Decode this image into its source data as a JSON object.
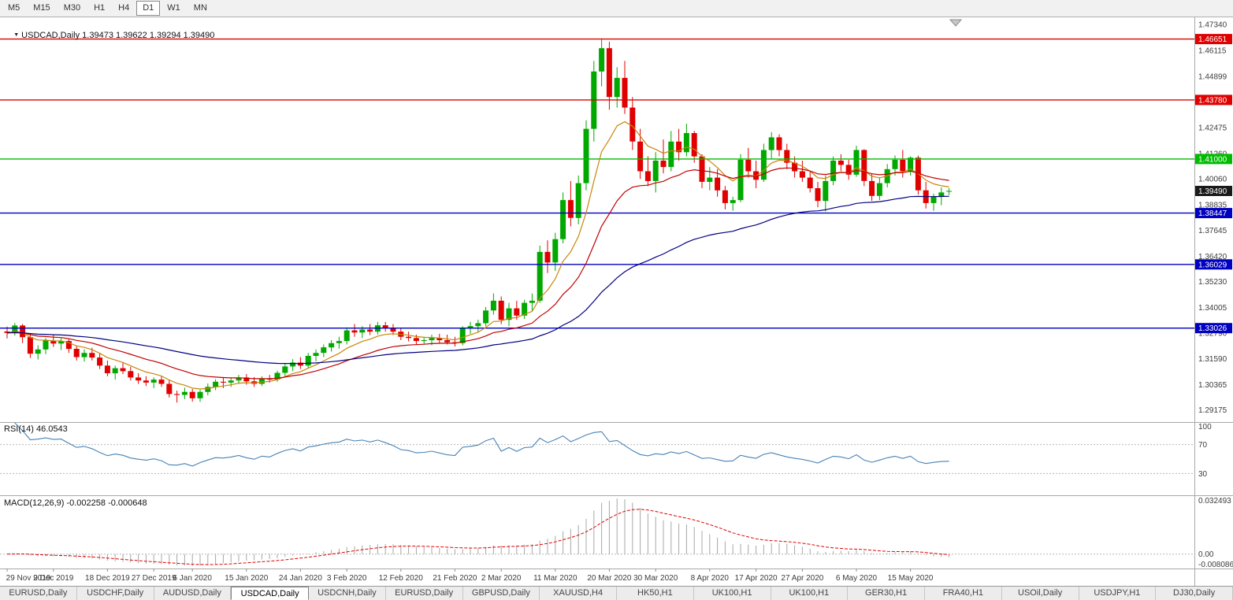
{
  "toolbar": {
    "timeframes": [
      {
        "label": "M5",
        "selected": false
      },
      {
        "label": "M15",
        "selected": false
      },
      {
        "label": "M30",
        "selected": false
      },
      {
        "label": "H1",
        "selected": false
      },
      {
        "label": "H4",
        "selected": false
      },
      {
        "label": "D1",
        "selected": true
      },
      {
        "label": "W1",
        "selected": false
      },
      {
        "label": "MN",
        "selected": false
      }
    ]
  },
  "icons": {
    "chart_dropdown": "▼"
  },
  "chart": {
    "symbol_title": "USDCAD,Daily 1.39473 1.39622 1.39294 1.39490"
  },
  "chart_data": {
    "type": "candlestick",
    "title": "USDCAD,Daily",
    "last_quote": {
      "open": "1.39473",
      "high": "1.39622",
      "low": "1.39294",
      "close": "1.39490"
    },
    "colors": {
      "up": "#00A800",
      "down": "#E00000",
      "background": "#FFFFFF",
      "axis_text": "#3C3C3C"
    },
    "y_axis": {
      "min": 1.286,
      "max": 1.476,
      "ticks": [
        {
          "value": 1.4734,
          "text": "1.47340"
        },
        {
          "value": 1.46115,
          "text": "1.46115"
        },
        {
          "value": 1.44899,
          "text": "1.44899"
        },
        {
          "value": 1.42475,
          "text": "1.42475"
        },
        {
          "value": 1.4126,
          "text": "1.41260"
        },
        {
          "value": 1.4006,
          "text": "1.40060"
        },
        {
          "value": 1.38835,
          "text": "1.38835"
        },
        {
          "value": 1.37645,
          "text": "1.37645"
        },
        {
          "value": 1.3642,
          "text": "1.36420"
        },
        {
          "value": 1.3523,
          "text": "1.35230"
        },
        {
          "value": 1.34005,
          "text": "1.34005"
        },
        {
          "value": 1.3279,
          "text": "1.32790"
        },
        {
          "value": 1.3159,
          "text": "1.31590"
        },
        {
          "value": 1.30365,
          "text": "1.30365"
        },
        {
          "value": 1.29175,
          "text": "1.29175"
        }
      ]
    },
    "hlines": [
      {
        "value": 1.46651,
        "text": "1.46651",
        "color": "#E00000"
      },
      {
        "value": 1.4378,
        "text": "1.43780",
        "color": "#E00000"
      },
      {
        "value": 1.41,
        "text": "1.41000",
        "color": "#00BB00"
      },
      {
        "value": 1.38447,
        "text": "1.38447",
        "color": "#0000C0"
      },
      {
        "value": 1.36029,
        "text": "1.36029",
        "color": "#0000C0"
      },
      {
        "value": 1.33026,
        "text": "1.33026",
        "color": "#0000C0"
      }
    ],
    "current_price_label": {
      "value": 1.3949,
      "text": "1.39490",
      "color": "#1A1A1A"
    },
    "moving_averages": [
      {
        "name": "fast",
        "period": 8,
        "method": "ema",
        "color": "#C8860A"
      },
      {
        "name": "medium",
        "period": 20,
        "method": "ema",
        "color": "#C00000"
      },
      {
        "name": "slow",
        "period": 55,
        "method": "ema",
        "color": "#000080"
      }
    ],
    "x_axis_labels": [
      {
        "date": "2019-11-29",
        "text": "29 Nov 2019"
      },
      {
        "date": "2019-12-09",
        "text": "9 Dec 2019"
      },
      {
        "date": "2019-12-18",
        "text": "18 Dec 2019"
      },
      {
        "date": "2019-12-27",
        "text": "27 Dec 2019"
      },
      {
        "date": "2020-01-06",
        "text": "6 Jan 2020"
      },
      {
        "date": "2020-01-15",
        "text": "15 Jan 2020"
      },
      {
        "date": "2020-01-24",
        "text": "24 Jan 2020"
      },
      {
        "date": "2020-02-03",
        "text": "3 Feb 2020"
      },
      {
        "date": "2020-02-12",
        "text": "12 Feb 2020"
      },
      {
        "date": "2020-02-21",
        "text": "21 Feb 2020"
      },
      {
        "date": "2020-03-02",
        "text": "2 Mar 2020"
      },
      {
        "date": "2020-03-11",
        "text": "11 Mar 2020"
      },
      {
        "date": "2020-03-20",
        "text": "20 Mar 2020"
      },
      {
        "date": "2020-03-30",
        "text": "30 Mar 2020"
      },
      {
        "date": "2020-04-08",
        "text": "8 Apr 2020"
      },
      {
        "date": "2020-04-17",
        "text": "17 Apr 2020"
      },
      {
        "date": "2020-04-27",
        "text": "27 Apr 2020"
      },
      {
        "date": "2020-05-06",
        "text": "6 May 2020"
      },
      {
        "date": "2020-05-15",
        "text": "15 May 2020"
      }
    ],
    "candles": [
      [
        "2019-11-29",
        1.3287,
        1.331,
        1.3254,
        1.328
      ],
      [
        "2019-12-02",
        1.328,
        1.3327,
        1.3268,
        1.3315
      ],
      [
        "2019-12-03",
        1.3315,
        1.3322,
        1.3232,
        1.326
      ],
      [
        "2019-12-04",
        1.326,
        1.3276,
        1.3162,
        1.3182
      ],
      [
        "2019-12-05",
        1.3182,
        1.3222,
        1.3155,
        1.3202
      ],
      [
        "2019-12-06",
        1.3202,
        1.3256,
        1.318,
        1.3244
      ],
      [
        "2019-12-09",
        1.3244,
        1.327,
        1.3214,
        1.323
      ],
      [
        "2019-12-10",
        1.323,
        1.3256,
        1.32,
        1.3242
      ],
      [
        "2019-12-11",
        1.3242,
        1.325,
        1.3186,
        1.3205
      ],
      [
        "2019-12-12",
        1.3205,
        1.322,
        1.315,
        1.3166
      ],
      [
        "2019-12-13",
        1.3166,
        1.3202,
        1.3145,
        1.3186
      ],
      [
        "2019-12-16",
        1.3186,
        1.321,
        1.315,
        1.3164
      ],
      [
        "2019-12-17",
        1.3164,
        1.3186,
        1.311,
        1.3126
      ],
      [
        "2019-12-18",
        1.3126,
        1.315,
        1.3076,
        1.309
      ],
      [
        "2019-12-19",
        1.309,
        1.3126,
        1.306,
        1.3114
      ],
      [
        "2019-12-20",
        1.3114,
        1.314,
        1.3086,
        1.31
      ],
      [
        "2019-12-23",
        1.31,
        1.312,
        1.3056,
        1.307
      ],
      [
        "2019-12-24",
        1.307,
        1.309,
        1.304,
        1.3056
      ],
      [
        "2019-12-26",
        1.3056,
        1.3076,
        1.303,
        1.3046
      ],
      [
        "2019-12-27",
        1.3046,
        1.307,
        1.302,
        1.306
      ],
      [
        "2019-12-30",
        1.306,
        1.3076,
        1.3026,
        1.304
      ],
      [
        "2019-12-31",
        1.304,
        1.306,
        1.2976,
        1.2992
      ],
      [
        "2020-01-02",
        1.2992,
        1.3008,
        1.2952,
        1.2988
      ],
      [
        "2020-01-03",
        1.2988,
        1.3022,
        1.2968,
        1.3002
      ],
      [
        "2020-01-06",
        1.3002,
        1.3016,
        1.2956,
        1.2972
      ],
      [
        "2020-01-07",
        1.2972,
        1.3012,
        1.2955,
        1.3002
      ],
      [
        "2020-01-08",
        1.3002,
        1.3042,
        1.2986,
        1.3026
      ],
      [
        "2020-01-09",
        1.3026,
        1.3062,
        1.301,
        1.305
      ],
      [
        "2020-01-10",
        1.305,
        1.3072,
        1.302,
        1.3046
      ],
      [
        "2020-01-13",
        1.3046,
        1.3066,
        1.3026,
        1.3056
      ],
      [
        "2020-01-14",
        1.3056,
        1.3082,
        1.304,
        1.307
      ],
      [
        "2020-01-15",
        1.307,
        1.3086,
        1.3036,
        1.3052
      ],
      [
        "2020-01-16",
        1.3052,
        1.3072,
        1.3026,
        1.304
      ],
      [
        "2020-01-17",
        1.304,
        1.3076,
        1.303,
        1.3066
      ],
      [
        "2020-01-20",
        1.3066,
        1.3082,
        1.3046,
        1.306
      ],
      [
        "2020-01-21",
        1.306,
        1.3102,
        1.305,
        1.3092
      ],
      [
        "2020-01-22",
        1.3092,
        1.3136,
        1.3076,
        1.3122
      ],
      [
        "2020-01-23",
        1.3122,
        1.3156,
        1.31,
        1.314
      ],
      [
        "2020-01-24",
        1.314,
        1.3166,
        1.311,
        1.3126
      ],
      [
        "2020-01-27",
        1.3126,
        1.3186,
        1.3116,
        1.3172
      ],
      [
        "2020-01-28",
        1.3172,
        1.3202,
        1.3146,
        1.3186
      ],
      [
        "2020-01-29",
        1.3186,
        1.3226,
        1.3166,
        1.3212
      ],
      [
        "2020-01-30",
        1.3212,
        1.3246,
        1.3192,
        1.3232
      ],
      [
        "2020-01-31",
        1.3232,
        1.3262,
        1.3206,
        1.3242
      ],
      [
        "2020-02-03",
        1.3242,
        1.3306,
        1.3226,
        1.3292
      ],
      [
        "2020-02-04",
        1.3292,
        1.3322,
        1.3262,
        1.3282
      ],
      [
        "2020-02-05",
        1.3282,
        1.3312,
        1.3256,
        1.3296
      ],
      [
        "2020-02-06",
        1.3296,
        1.3322,
        1.327,
        1.3286
      ],
      [
        "2020-02-07",
        1.3286,
        1.3332,
        1.3272,
        1.3316
      ],
      [
        "2020-02-10",
        1.3316,
        1.3332,
        1.3286,
        1.3302
      ],
      [
        "2020-02-11",
        1.3302,
        1.3322,
        1.327,
        1.3286
      ],
      [
        "2020-02-12",
        1.3286,
        1.3302,
        1.3246,
        1.3262
      ],
      [
        "2020-02-13",
        1.3262,
        1.3286,
        1.324,
        1.3256
      ],
      [
        "2020-02-14",
        1.3256,
        1.3272,
        1.3226,
        1.3242
      ],
      [
        "2020-02-17",
        1.3242,
        1.3262,
        1.3226,
        1.3246
      ],
      [
        "2020-02-18",
        1.3246,
        1.3272,
        1.3222,
        1.3256
      ],
      [
        "2020-02-19",
        1.3256,
        1.3276,
        1.3232,
        1.3246
      ],
      [
        "2020-02-20",
        1.3246,
        1.3272,
        1.3226,
        1.3236
      ],
      [
        "2020-02-21",
        1.3236,
        1.3262,
        1.3216,
        1.3232
      ],
      [
        "2020-02-24",
        1.3232,
        1.3312,
        1.3222,
        1.3302
      ],
      [
        "2020-02-25",
        1.3302,
        1.3332,
        1.3276,
        1.3312
      ],
      [
        "2020-02-26",
        1.3312,
        1.3342,
        1.3286,
        1.3326
      ],
      [
        "2020-02-27",
        1.3326,
        1.3402,
        1.3312,
        1.3386
      ],
      [
        "2020-02-28",
        1.3386,
        1.3466,
        1.3366,
        1.3432
      ],
      [
        "2020-03-02",
        1.3432,
        1.3452,
        1.3322,
        1.3342
      ],
      [
        "2020-03-03",
        1.3342,
        1.3422,
        1.3312,
        1.3396
      ],
      [
        "2020-03-04",
        1.3396,
        1.3432,
        1.3342,
        1.3362
      ],
      [
        "2020-03-05",
        1.3362,
        1.3436,
        1.3346,
        1.3422
      ],
      [
        "2020-03-06",
        1.3422,
        1.3466,
        1.3382,
        1.3432
      ],
      [
        "2020-03-09",
        1.3432,
        1.3692,
        1.3422,
        1.3662
      ],
      [
        "2020-03-10",
        1.3662,
        1.3716,
        1.3562,
        1.3612
      ],
      [
        "2020-03-11",
        1.3612,
        1.3752,
        1.3572,
        1.3722
      ],
      [
        "2020-03-12",
        1.3722,
        1.3942,
        1.3702,
        1.3906
      ],
      [
        "2020-03-13",
        1.3906,
        1.3996,
        1.3782,
        1.3822
      ],
      [
        "2020-03-16",
        1.3822,
        1.4022,
        1.3792,
        1.3986
      ],
      [
        "2020-03-17",
        1.3986,
        1.4282,
        1.3952,
        1.4242
      ],
      [
        "2020-03-18",
        1.4242,
        1.4562,
        1.4182,
        1.4512
      ],
      [
        "2020-03-19",
        1.4512,
        1.4668,
        1.4442,
        1.4622
      ],
      [
        "2020-03-20",
        1.4622,
        1.4652,
        1.4332,
        1.4392
      ],
      [
        "2020-03-23",
        1.4392,
        1.4532,
        1.4342,
        1.4482
      ],
      [
        "2020-03-24",
        1.4482,
        1.4562,
        1.4312,
        1.4342
      ],
      [
        "2020-03-25",
        1.4342,
        1.4392,
        1.4142,
        1.4182
      ],
      [
        "2020-03-26",
        1.4182,
        1.4242,
        1.4006,
        1.4042
      ],
      [
        "2020-03-27",
        1.4042,
        1.4112,
        1.3972,
        1.3996
      ],
      [
        "2020-03-30",
        1.3996,
        1.4132,
        1.3942,
        1.4092
      ],
      [
        "2020-03-31",
        1.4092,
        1.4192,
        1.4032,
        1.4062
      ],
      [
        "2020-04-01",
        1.4062,
        1.4232,
        1.4042,
        1.4182
      ],
      [
        "2020-04-02",
        1.4182,
        1.4242,
        1.4092,
        1.4132
      ],
      [
        "2020-04-03",
        1.4132,
        1.4266,
        1.4112,
        1.4222
      ],
      [
        "2020-04-06",
        1.4222,
        1.4232,
        1.4082,
        1.4112
      ],
      [
        "2020-04-07",
        1.4112,
        1.4122,
        1.3962,
        1.3992
      ],
      [
        "2020-04-08",
        1.3992,
        1.4062,
        1.3952,
        1.4012
      ],
      [
        "2020-04-09",
        1.4012,
        1.4052,
        1.3922,
        1.3952
      ],
      [
        "2020-04-13",
        1.3952,
        1.3972,
        1.3862,
        1.3892
      ],
      [
        "2020-04-14",
        1.3892,
        1.3922,
        1.3856,
        1.3906
      ],
      [
        "2020-04-15",
        1.3906,
        1.4122,
        1.3896,
        1.4096
      ],
      [
        "2020-04-16",
        1.4096,
        1.4152,
        1.4012,
        1.4042
      ],
      [
        "2020-04-17",
        1.4042,
        1.4092,
        1.3962,
        1.4002
      ],
      [
        "2020-04-20",
        1.4002,
        1.4172,
        1.3992,
        1.4142
      ],
      [
        "2020-04-21",
        1.4142,
        1.4226,
        1.4102,
        1.4202
      ],
      [
        "2020-04-22",
        1.4202,
        1.4216,
        1.4112,
        1.4142
      ],
      [
        "2020-04-23",
        1.4142,
        1.4172,
        1.4052,
        1.4082
      ],
      [
        "2020-04-24",
        1.4082,
        1.4112,
        1.4012,
        1.4042
      ],
      [
        "2020-04-27",
        1.4042,
        1.4092,
        1.3992,
        1.4012
      ],
      [
        "2020-04-28",
        1.4012,
        1.4042,
        1.3942,
        1.3962
      ],
      [
        "2020-04-29",
        1.3962,
        1.3992,
        1.3872,
        1.3902
      ],
      [
        "2020-04-30",
        1.3902,
        1.4022,
        1.3852,
        1.3996
      ],
      [
        "2020-05-01",
        1.3996,
        1.4112,
        1.3976,
        1.4092
      ],
      [
        "2020-05-04",
        1.4092,
        1.4122,
        1.4042,
        1.4072
      ],
      [
        "2020-05-05",
        1.4072,
        1.4096,
        1.4002,
        1.4026
      ],
      [
        "2020-05-06",
        1.4026,
        1.4162,
        1.4016,
        1.4142
      ],
      [
        "2020-05-07",
        1.4142,
        1.4146,
        1.3972,
        1.3996
      ],
      [
        "2020-05-08",
        1.3996,
        1.4032,
        1.3902,
        1.3926
      ],
      [
        "2020-05-11",
        1.3926,
        1.4012,
        1.3906,
        1.3986
      ],
      [
        "2020-05-12",
        1.3986,
        1.4076,
        1.3966,
        1.4052
      ],
      [
        "2020-05-13",
        1.4052,
        1.4116,
        1.4022,
        1.4096
      ],
      [
        "2020-05-14",
        1.4096,
        1.4142,
        1.4012,
        1.4042
      ],
      [
        "2020-05-15",
        1.4042,
        1.4112,
        1.4022,
        1.4106
      ],
      [
        "2020-05-18",
        1.4106,
        1.4116,
        1.3932,
        1.3952
      ],
      [
        "2020-05-19",
        1.3952,
        1.3992,
        1.3866,
        1.3892
      ],
      [
        "2020-05-20",
        1.3892,
        1.3936,
        1.3856,
        1.3922
      ],
      [
        "2020-05-21",
        1.3922,
        1.3966,
        1.3882,
        1.3942
      ],
      [
        "2020-05-22",
        1.39473,
        1.39622,
        1.39294,
        1.3949
      ]
    ],
    "indicators": {
      "rsi": {
        "label": "RSI(14) 46.0543",
        "period": 14,
        "value": "46.0543",
        "range": [
          0,
          100
        ],
        "levels": [
          70,
          30
        ],
        "line_color": "#4682B4",
        "axis_labels": [
          {
            "value": 100,
            "text": "100"
          },
          {
            "value": 70,
            "text": "70"
          },
          {
            "value": 30,
            "text": "30"
          }
        ]
      },
      "macd": {
        "label": "MACD(12,26,9) -0.002258 -0.000648",
        "fast": 12,
        "slow": 26,
        "signal": 9,
        "values": {
          "macd": "-0.002258",
          "signal": "-0.000648"
        },
        "range": [
          -0.008086,
          0.032493
        ],
        "histogram_color": "#A8A8A8",
        "signal_color": "#E00000",
        "axis_labels": [
          {
            "value": 0.032493,
            "text": "0.032493"
          },
          {
            "value": 0,
            "text": "0.00"
          },
          {
            "value": -0.008086,
            "text": "-0.008086"
          }
        ]
      }
    }
  },
  "bottom_tabs": [
    {
      "label": "EURUSD,Daily",
      "selected": false
    },
    {
      "label": "USDCHF,Daily",
      "selected": false
    },
    {
      "label": "AUDUSD,Daily",
      "selected": false
    },
    {
      "label": "USDCAD,Daily",
      "selected": true
    },
    {
      "label": "USDCNH,Daily",
      "selected": false
    },
    {
      "label": "EURUSD,Daily",
      "selected": false
    },
    {
      "label": "GBPUSD,Daily",
      "selected": false
    },
    {
      "label": "XAUUSD,H4",
      "selected": false
    },
    {
      "label": "HK50,H1",
      "selected": false
    },
    {
      "label": "UK100,H1",
      "selected": false
    },
    {
      "label": "UK100,H1",
      "selected": false
    },
    {
      "label": "GER30,H1",
      "selected": false
    },
    {
      "label": "FRA40,H1",
      "selected": false
    },
    {
      "label": "USOil,Daily",
      "selected": false
    },
    {
      "label": "USDJPY,H1",
      "selected": false
    },
    {
      "label": "DJ30,Daily",
      "selected": false
    }
  ]
}
